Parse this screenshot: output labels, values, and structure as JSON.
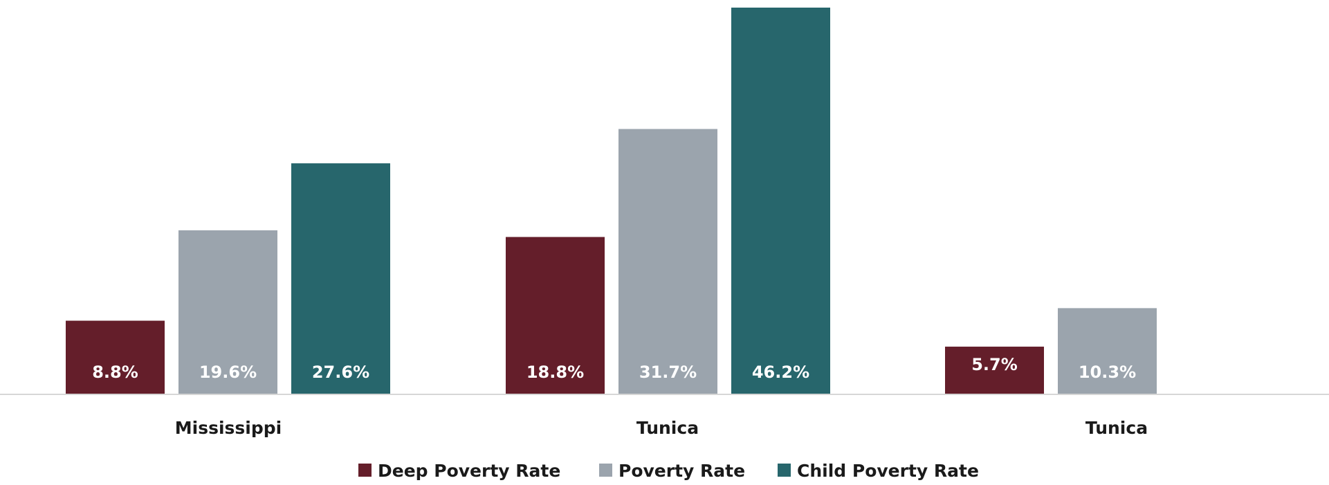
{
  "chart_data": {
    "type": "bar",
    "categories": [
      "Mississippi",
      "Tunica",
      "Tunica"
    ],
    "series": [
      {
        "name": "Deep Poverty Rate",
        "values": [
          8.8,
          18.8,
          5.7
        ],
        "labels": [
          "8.8%",
          "18.8%",
          "5.7%"
        ],
        "color": "#641e2a"
      },
      {
        "name": "Poverty Rate",
        "values": [
          19.6,
          31.7,
          10.3
        ],
        "labels": [
          "19.6%",
          "31.7%",
          "10.3%"
        ],
        "color": "#9ba4ad"
      },
      {
        "name": "Child Poverty Rate",
        "values": [
          27.6,
          46.2,
          null
        ],
        "labels": [
          "27.6%",
          "46.2%",
          ""
        ],
        "color": "#27666c"
      }
    ],
    "ylim": [
      0,
      46.2
    ],
    "axis_color": "#d6d6d6",
    "grid": false,
    "legend_position": "bottom"
  }
}
